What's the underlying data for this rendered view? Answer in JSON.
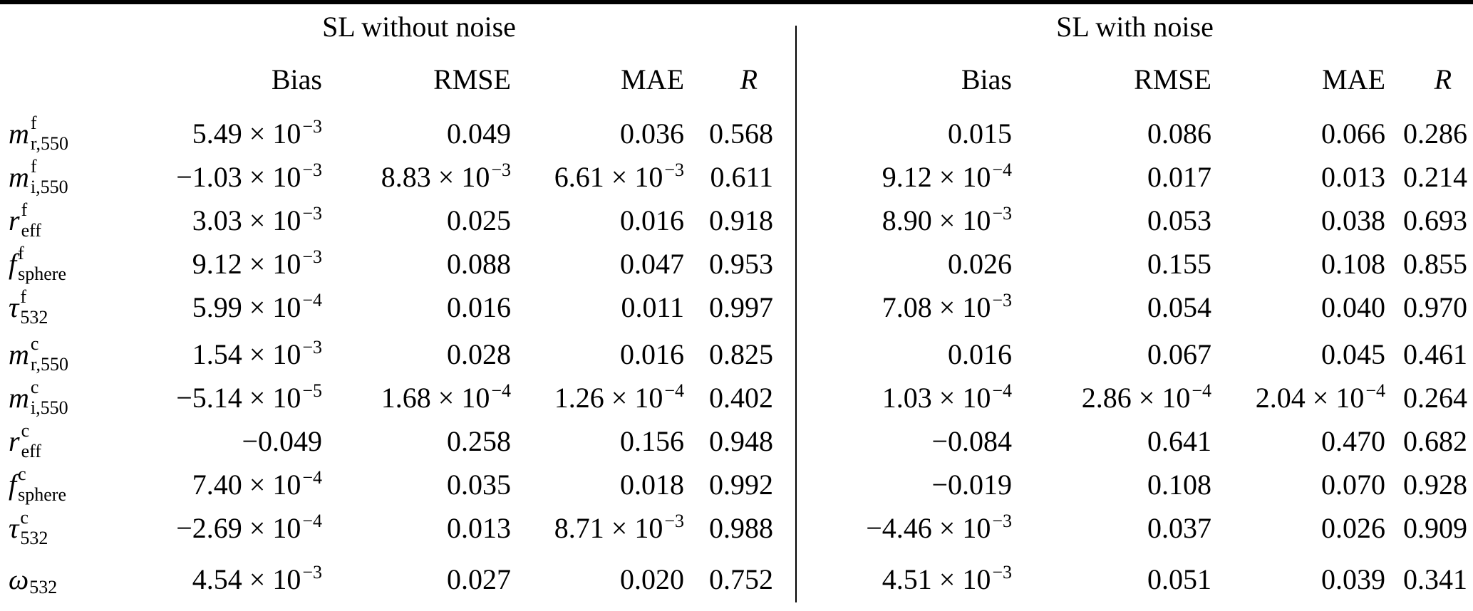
{
  "table": {
    "group_headers": {
      "left": "SL without noise",
      "right": "SL with noise"
    },
    "metric_headers": {
      "bias": "Bias",
      "rmse": "RMSE",
      "mae": "MAE",
      "r": "R"
    },
    "sections": [
      {
        "name": "fine-mode-parameters",
        "rows": [
          {
            "label": {
              "base": "m",
              "sup": "f",
              "sub": "r,550"
            },
            "values": [
              "5.49 × 10^−3",
              "0.049",
              "0.036",
              "0.568",
              "0.015",
              "0.086",
              "0.066",
              "0.286"
            ]
          },
          {
            "label": {
              "base": "m",
              "sup": "f",
              "sub": "i,550"
            },
            "values": [
              "−1.03 × 10^−3",
              "8.83 × 10^−3",
              "6.61 × 10^−3",
              "0.611",
              "9.12 × 10^−4",
              "0.017",
              "0.013",
              "0.214"
            ]
          },
          {
            "label": {
              "base": "r",
              "sup": "f",
              "sub": "eff"
            },
            "values": [
              "3.03 × 10^−3",
              "0.025",
              "0.016",
              "0.918",
              "8.90 × 10^−3",
              "0.053",
              "0.038",
              "0.693"
            ]
          },
          {
            "label": {
              "base": "f",
              "sup": "f",
              "sub": "sphere"
            },
            "values": [
              "9.12 × 10^−3",
              "0.088",
              "0.047",
              "0.953",
              "0.026",
              "0.155",
              "0.108",
              "0.855"
            ]
          },
          {
            "label": {
              "base": "τ",
              "sup": "f",
              "sub": "532"
            },
            "values": [
              "5.99 × 10^−4",
              "0.016",
              "0.011",
              "0.997",
              "7.08 × 10^−3",
              "0.054",
              "0.040",
              "0.970"
            ]
          }
        ]
      },
      {
        "name": "coarse-mode-parameters",
        "rows": [
          {
            "label": {
              "base": "m",
              "sup": "c",
              "sub": "r,550"
            },
            "values": [
              "1.54 × 10^−3",
              "0.028",
              "0.016",
              "0.825",
              "0.016",
              "0.067",
              "0.045",
              "0.461"
            ]
          },
          {
            "label": {
              "base": "m",
              "sup": "c",
              "sub": "i,550"
            },
            "values": [
              "−5.14 × 10^−5",
              "1.68 × 10^−4",
              "1.26 × 10^−4",
              "0.402",
              "1.03 × 10^−4",
              "2.86 × 10^−4",
              "2.04 × 10^−4",
              "0.264"
            ]
          },
          {
            "label": {
              "base": "r",
              "sup": "c",
              "sub": "eff"
            },
            "values": [
              "−0.049",
              "0.258",
              "0.156",
              "0.948",
              "−0.084",
              "0.641",
              "0.470",
              "0.682"
            ]
          },
          {
            "label": {
              "base": "f",
              "sup": "c",
              "sub": "sphere"
            },
            "values": [
              "7.40 × 10^−4",
              "0.035",
              "0.018",
              "0.992",
              "−0.019",
              "0.108",
              "0.070",
              "0.928"
            ]
          },
          {
            "label": {
              "base": "τ",
              "sup": "c",
              "sub": "532"
            },
            "values": [
              "−2.69 × 10^−4",
              "0.013",
              "8.71 × 10^−3",
              "0.988",
              "−4.46 × 10^−3",
              "0.037",
              "0.026",
              "0.909"
            ]
          }
        ]
      },
      {
        "name": "single-scattering-albedo",
        "rows": [
          {
            "label": {
              "base": "ω",
              "sup": "",
              "sub": "532"
            },
            "values": [
              "4.54 × 10^−3",
              "0.027",
              "0.020",
              "0.752",
              "4.51 × 10^−3",
              "0.051",
              "0.039",
              "0.341"
            ]
          }
        ]
      }
    ]
  }
}
